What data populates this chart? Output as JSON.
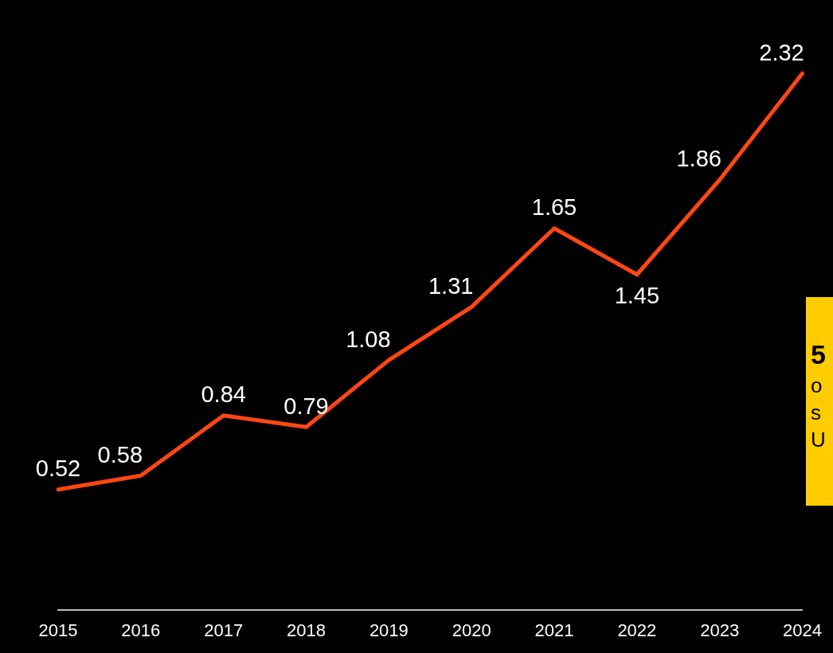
{
  "chart_data": {
    "type": "line",
    "categories": [
      "2015",
      "2016",
      "2017",
      "2018",
      "2019",
      "2020",
      "2021",
      "2022",
      "2023",
      "2024"
    ],
    "series": [
      {
        "color": "#ff4713",
        "values": [
          0.52,
          0.58,
          0.84,
          0.79,
          1.08,
          1.31,
          1.65,
          1.45,
          1.86,
          2.32
        ]
      }
    ],
    "tick_labels": "x",
    "data_labels": true,
    "grid": false,
    "legend": false,
    "marker": "none",
    "line_style": "solid",
    "annotations": [
      "5",
      "o",
      "s",
      "U"
    ]
  }
}
